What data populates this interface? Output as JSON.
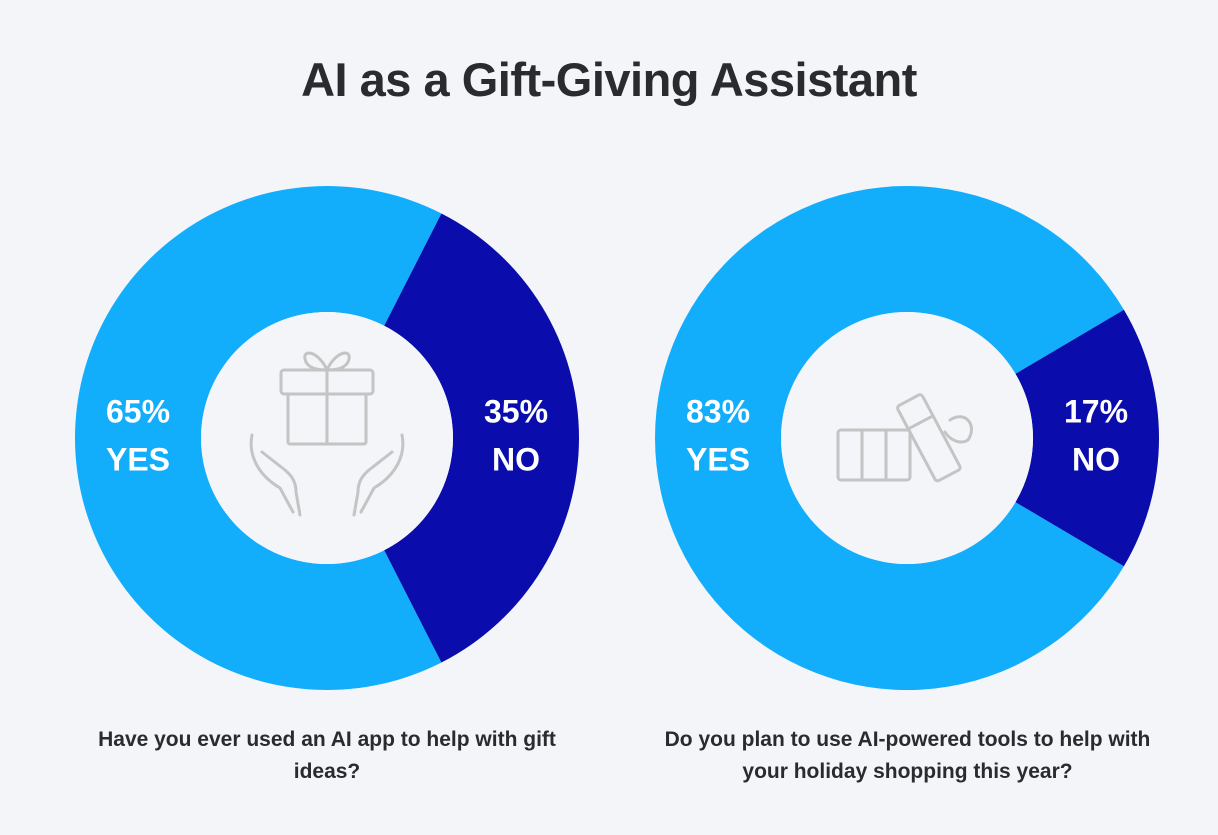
{
  "title": "AI as a Gift-Giving Assistant",
  "chart_data": [
    {
      "type": "donut",
      "categories": [
        "YES",
        "NO"
      ],
      "values": [
        65,
        35
      ],
      "value_labels": [
        "65%",
        "35%"
      ],
      "colors": [
        "#12aefc",
        "#0a0cab"
      ],
      "caption": "Have you ever used an AI app to help with gift ideas?"
    },
    {
      "type": "donut",
      "categories": [
        "YES",
        "NO"
      ],
      "values": [
        83,
        17
      ],
      "value_labels": [
        "83%",
        "17%"
      ],
      "colors": [
        "#12aefc",
        "#0a0cab"
      ],
      "caption": "Do you plan to use AI-powered tools to help with your holiday shopping this year?"
    }
  ]
}
